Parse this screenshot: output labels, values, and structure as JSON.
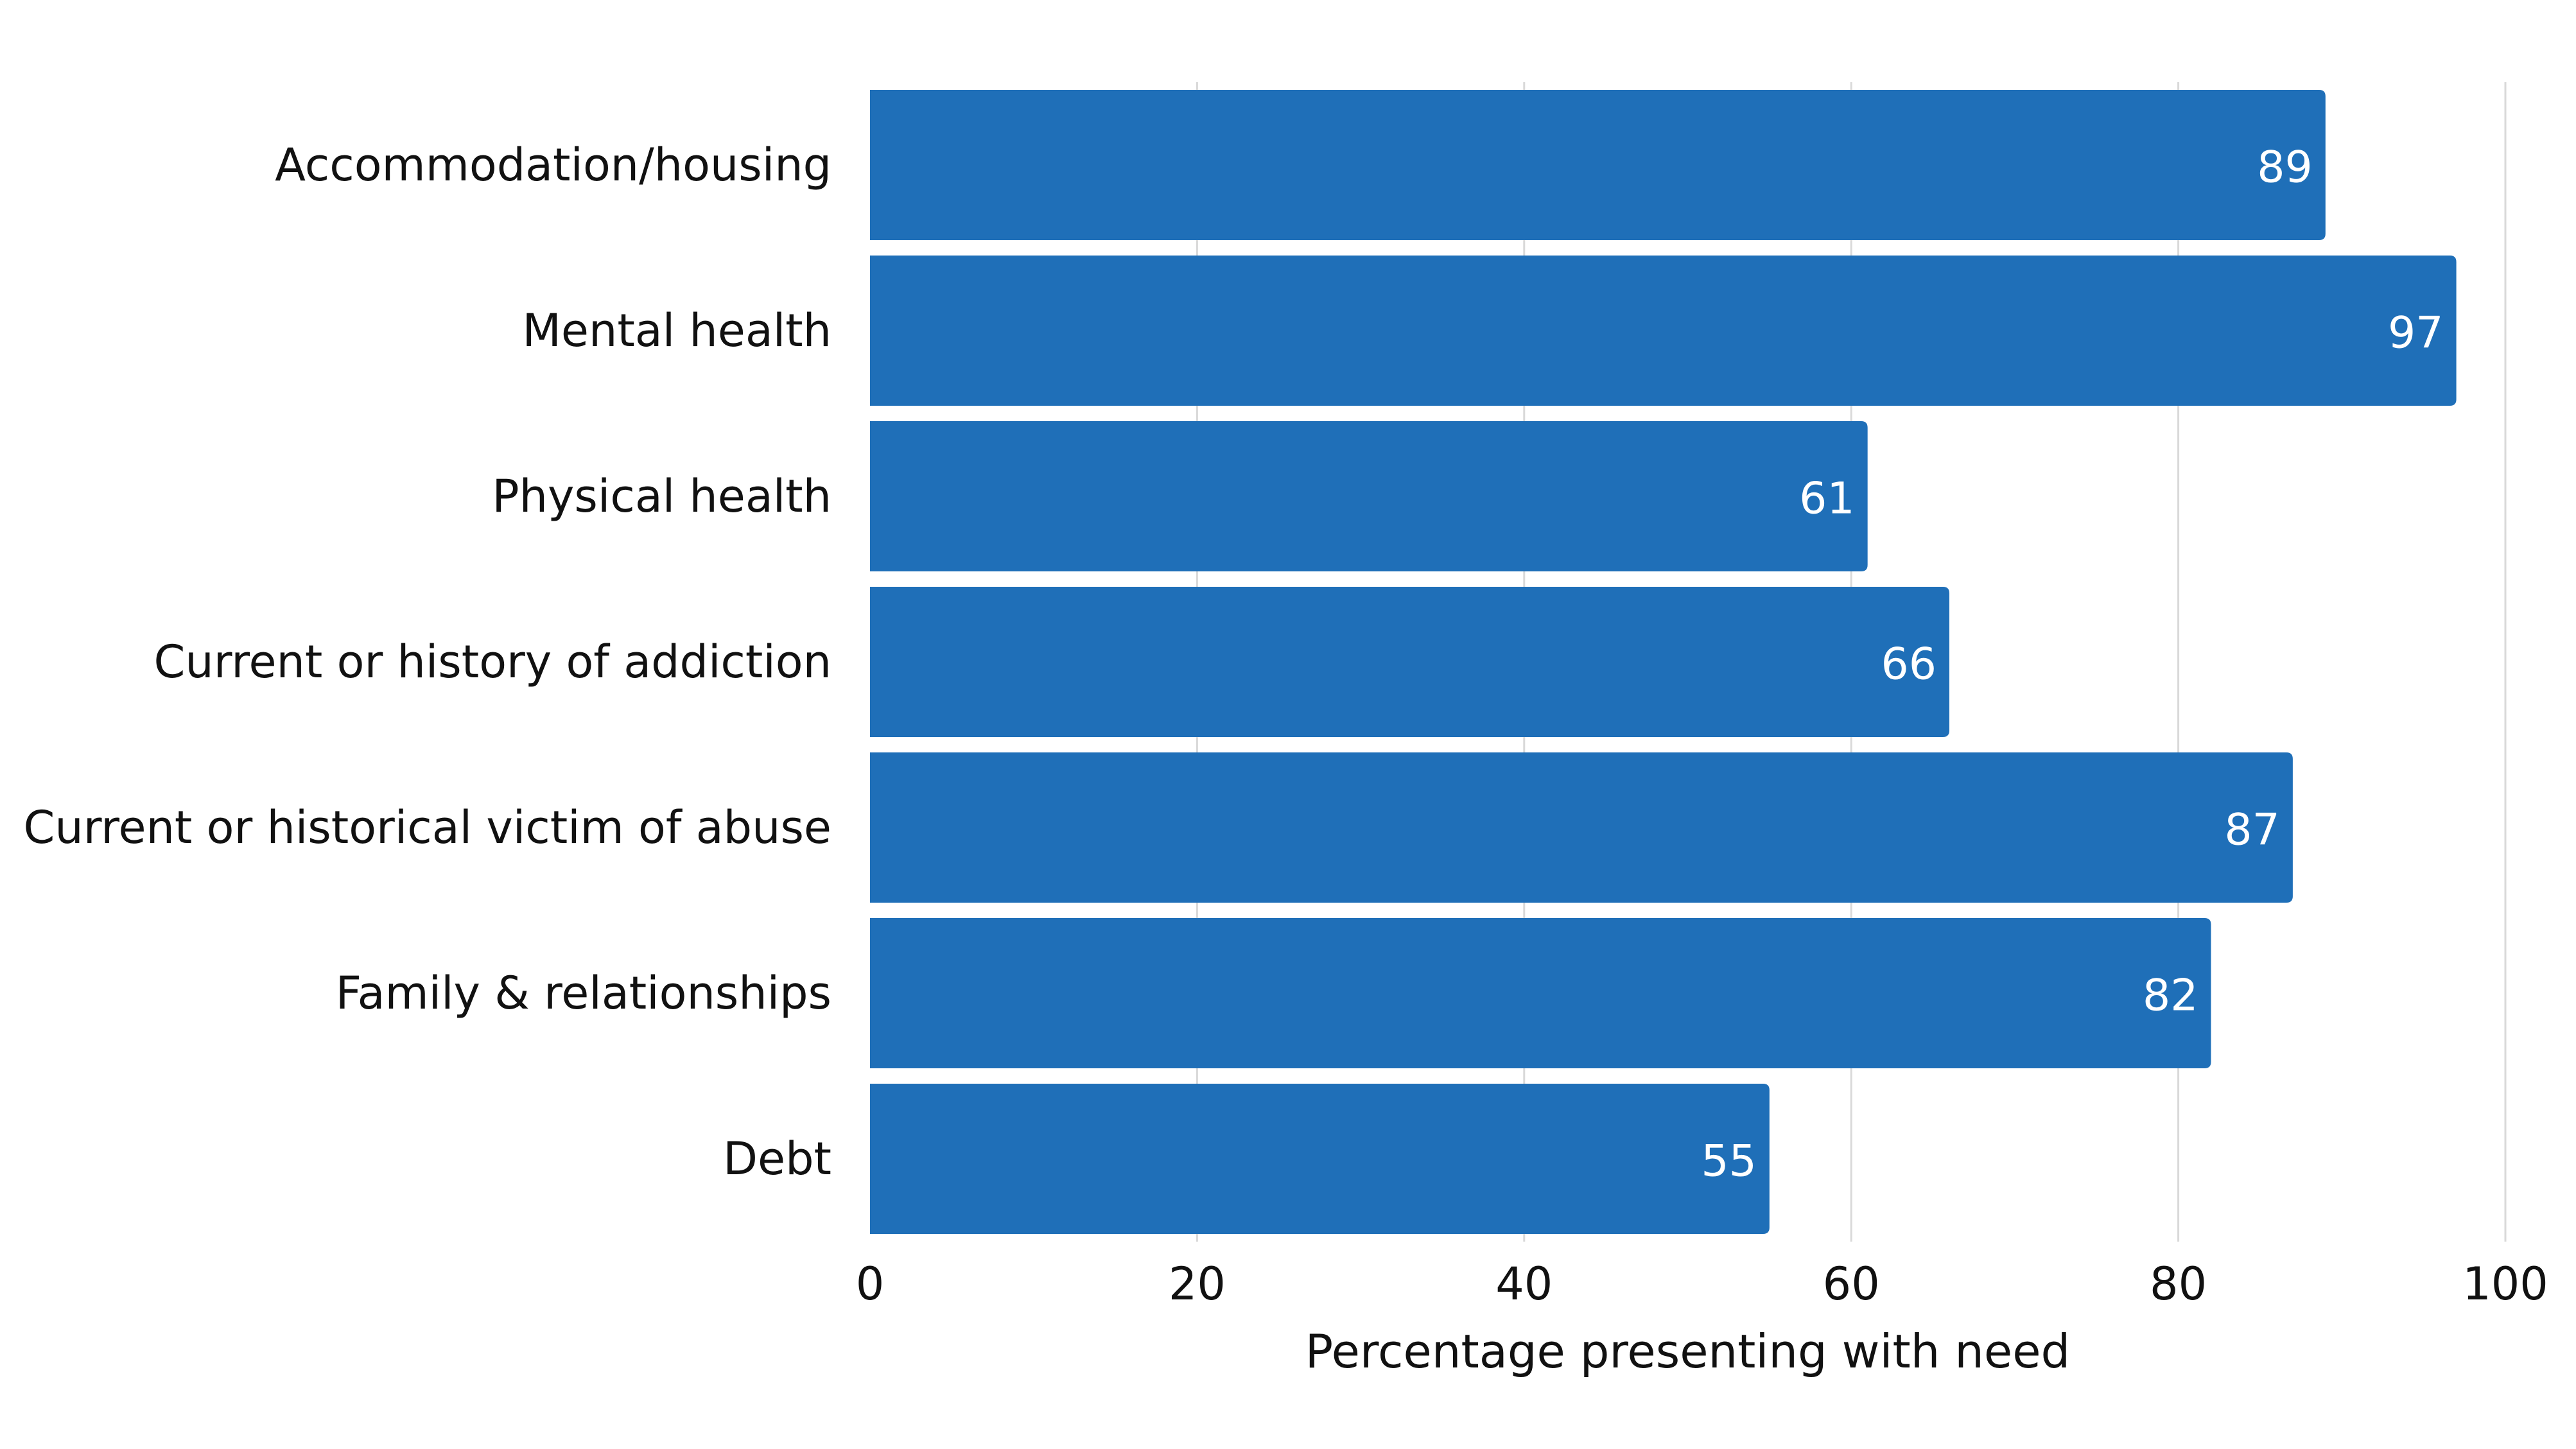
{
  "colors": {
    "bar": "#1f6fb8",
    "grid": "#d9d9d9",
    "label_text": "#111111",
    "value_text": "#ffffff",
    "background": "#ffffff"
  },
  "chart_data": {
    "type": "bar",
    "orientation": "horizontal",
    "title": "",
    "categories": [
      "Accommodation/housing",
      "Mental health",
      "Physical health",
      "Current or history of addiction",
      "Current or historical victim of abuse",
      "Family & relationships",
      "Debt"
    ],
    "values": [
      89,
      97,
      61,
      66,
      87,
      82,
      55
    ],
    "value_labels": [
      "89",
      "97",
      "61",
      "66",
      "87",
      "82",
      "55"
    ],
    "xlabel": "Percentage presenting with need",
    "ylabel": "",
    "xlim": [
      0,
      100
    ],
    "x_ticks": [
      0,
      20,
      40,
      60,
      80,
      100
    ],
    "x_tick_labels": [
      "0",
      "20",
      "40",
      "60",
      "80",
      "100"
    ],
    "grid": true,
    "legend": "none"
  }
}
